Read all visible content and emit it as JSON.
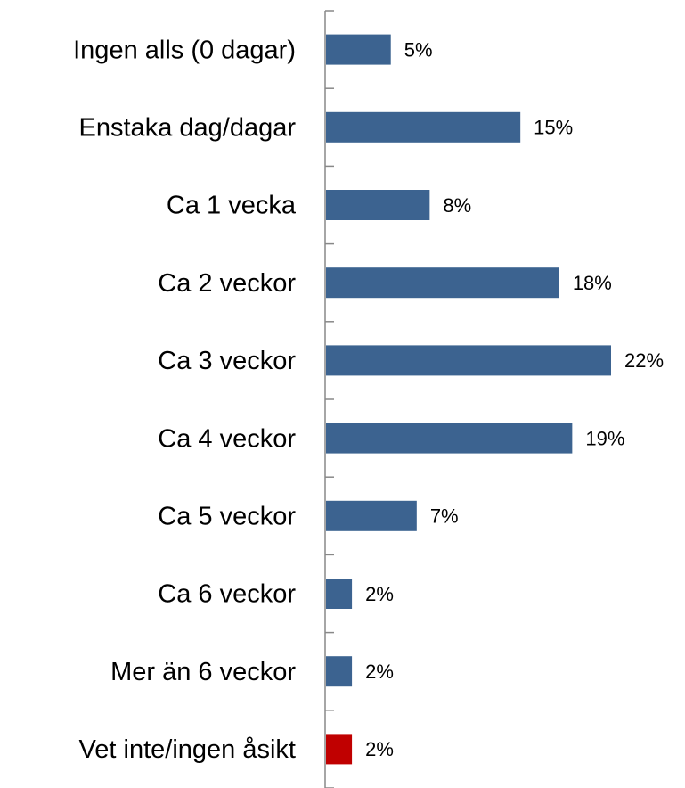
{
  "chart_data": {
    "type": "bar",
    "orientation": "horizontal",
    "categories": [
      "Ingen alls (0 dagar)",
      "Enstaka dag/dagar",
      "Ca 1 vecka",
      "Ca 2 veckor",
      "Ca 3 veckor",
      "Ca 4 veckor",
      "Ca 5 veckor",
      "Ca 6 veckor",
      "Mer än 6 veckor",
      "Vet inte/ingen åsikt"
    ],
    "values": [
      5,
      15,
      8,
      18,
      22,
      19,
      7,
      2,
      2,
      2
    ],
    "value_labels": [
      "5%",
      "15%",
      "8%",
      "18%",
      "22%",
      "19%",
      "7%",
      "2%",
      "2%",
      "2%"
    ],
    "colors": [
      "#3c6390",
      "#3c6390",
      "#3c6390",
      "#3c6390",
      "#3c6390",
      "#3c6390",
      "#3c6390",
      "#3c6390",
      "#3c6390",
      "#c00000"
    ]
  }
}
